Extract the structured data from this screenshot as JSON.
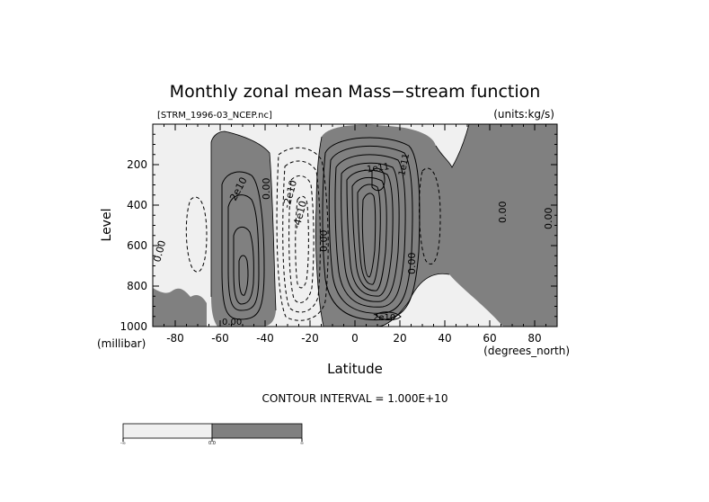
{
  "chart_data": {
    "type": "contour",
    "title": "Monthly zonal mean Mass−stream function",
    "file_label": "[STRM_1996-03_NCEP.nc]",
    "units_label": "(units:kg/s)",
    "xlabel": "Latitude",
    "xunit": "(degrees_north)",
    "ylabel": "Level",
    "yunit": "(millibar)",
    "xlim": [
      -90,
      90
    ],
    "ylim": [
      1000,
      0
    ],
    "x_ticks": [
      "-80",
      "-60",
      "-40",
      "-20",
      "0",
      "20",
      "40",
      "60",
      "80"
    ],
    "y_ticks": [
      "200",
      "400",
      "600",
      "800",
      "1000"
    ],
    "contour_interval": "CONTOUR INTERVAL = 1.000E+10",
    "contour_labels": [
      "2e10",
      "0.00",
      "-2e10",
      "-4e10",
      "0.00",
      "0.00",
      "0.00",
      "0.00",
      "0.00",
      "0.00",
      "-1e11",
      "1e11",
      "2e10"
    ],
    "colorbar": {
      "labels": [
        "-∞",
        "0.0",
        "∞"
      ],
      "colors": [
        "#f0f0f0",
        "#808080"
      ]
    },
    "colors": {
      "negative_fill": "#f0f0f0",
      "positive_fill": "#808080",
      "line": "#000000"
    }
  }
}
